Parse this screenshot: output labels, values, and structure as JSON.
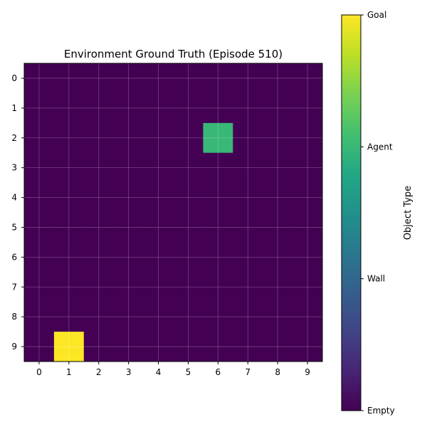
{
  "chart_data": {
    "type": "heatmap",
    "title": "Environment Ground Truth (Episode 510)",
    "x_ticks": [
      "0",
      "1",
      "2",
      "3",
      "4",
      "5",
      "6",
      "7",
      "8",
      "9"
    ],
    "y_ticks": [
      "0",
      "1",
      "2",
      "3",
      "4",
      "5",
      "6",
      "7",
      "8",
      "9"
    ],
    "grid": true,
    "colormap": "viridis",
    "colorbar": {
      "label": "Object Type",
      "range": [
        0,
        3
      ],
      "ticks": [
        {
          "value": 0,
          "label": "Empty"
        },
        {
          "value": 1,
          "label": "Wall"
        },
        {
          "value": 2,
          "label": "Agent"
        },
        {
          "value": 3,
          "label": "Goal"
        }
      ]
    },
    "values": [
      [
        0,
        0,
        0,
        0,
        0,
        0,
        0,
        0,
        0,
        0
      ],
      [
        0,
        0,
        0,
        0,
        0,
        0,
        0,
        0,
        0,
        0
      ],
      [
        0,
        0,
        0,
        0,
        0,
        0,
        2,
        0,
        0,
        0
      ],
      [
        0,
        0,
        0,
        0,
        0,
        0,
        0,
        0,
        0,
        0
      ],
      [
        0,
        0,
        0,
        0,
        0,
        0,
        0,
        0,
        0,
        0
      ],
      [
        0,
        0,
        0,
        0,
        0,
        0,
        0,
        0,
        0,
        0
      ],
      [
        0,
        0,
        0,
        0,
        0,
        0,
        0,
        0,
        0,
        0
      ],
      [
        0,
        0,
        0,
        0,
        0,
        0,
        0,
        0,
        0,
        0
      ],
      [
        0,
        0,
        0,
        0,
        0,
        0,
        0,
        0,
        0,
        0
      ],
      [
        0,
        3,
        0,
        0,
        0,
        0,
        0,
        0,
        0,
        0
      ]
    ]
  }
}
